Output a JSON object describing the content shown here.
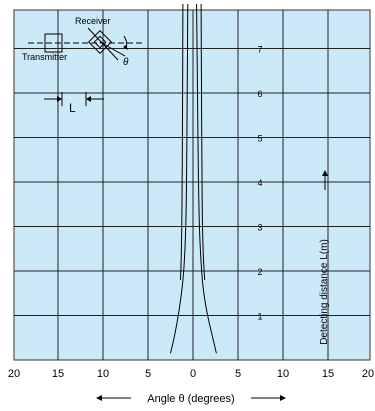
{
  "chart_data": {
    "type": "line",
    "xlabel": "Angle θ (degrees)",
    "ylabel": "Detecting distance L(m)",
    "xlim": [
      -20,
      20
    ],
    "ylim": [
      0,
      8
    ],
    "x_ticks": [
      -20,
      -15,
      -10,
      -5,
      0,
      5,
      10,
      15,
      20
    ],
    "x_tick_labels": [
      "20",
      "15",
      "10",
      "5",
      "0",
      "5",
      "10",
      "15",
      "20"
    ],
    "y_ticks": [
      1,
      2,
      3,
      4,
      5,
      6,
      7
    ],
    "y_tick_labels": [
      "1",
      "2",
      "3",
      "4",
      "5",
      "6",
      "7"
    ],
    "grid": true,
    "series": [
      {
        "points": [
          [
            -2.5,
            0.15
          ],
          [
            -2.2,
            0.4
          ],
          [
            -1.8,
            0.8
          ],
          [
            -1.4,
            1.3
          ],
          [
            -1.05,
            1.9
          ],
          [
            -0.85,
            2.6
          ],
          [
            -0.75,
            3.5
          ],
          [
            -0.7,
            4.5
          ],
          [
            -0.66,
            5.5
          ],
          [
            -0.63,
            6.5
          ],
          [
            -0.6,
            7.5
          ],
          [
            -0.58,
            8.0
          ]
        ]
      },
      {
        "points": [
          [
            -1.4,
            1.8
          ],
          [
            -1.3,
            2.3
          ],
          [
            -1.25,
            3.0
          ],
          [
            -1.2,
            4.0
          ],
          [
            -1.18,
            5.0
          ],
          [
            -1.16,
            6.0
          ],
          [
            -1.14,
            7.0
          ],
          [
            -1.12,
            8.0
          ]
        ]
      },
      {
        "points": [
          [
            0.9,
            8.0
          ],
          [
            0.92,
            7.0
          ],
          [
            0.95,
            6.0
          ],
          [
            0.97,
            5.0
          ],
          [
            1.0,
            4.0
          ],
          [
            1.05,
            3.0
          ],
          [
            1.15,
            2.3
          ],
          [
            1.3,
            1.8
          ]
        ]
      },
      {
        "points": [
          [
            0.4,
            8.0
          ],
          [
            0.45,
            7.0
          ],
          [
            0.5,
            6.0
          ],
          [
            0.55,
            5.0
          ],
          [
            0.6,
            4.0
          ],
          [
            0.7,
            3.0
          ],
          [
            0.85,
            2.3
          ],
          [
            1.1,
            1.6
          ],
          [
            1.6,
            1.0
          ],
          [
            2.2,
            0.5
          ],
          [
            2.6,
            0.15
          ]
        ]
      }
    ]
  },
  "inset": {
    "receiver_label": "Receiver",
    "transmitter_label": "Transmitter",
    "theta_label": "θ",
    "distance_label": "L"
  }
}
